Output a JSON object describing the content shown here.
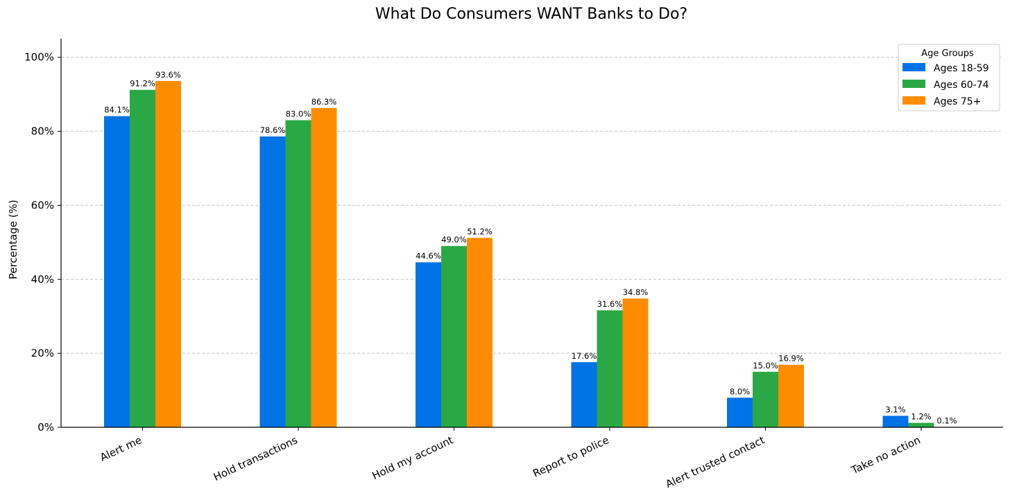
{
  "chart_data": {
    "type": "bar",
    "title": "What Do Consumers WANT Banks to Do?",
    "xlabel": "",
    "ylabel": "Percentage (%)",
    "ylim": [
      0,
      105
    ],
    "yticks": [
      0,
      20,
      40,
      60,
      80,
      100
    ],
    "ytick_labels": [
      "0%",
      "20%",
      "40%",
      "60%",
      "80%",
      "100%"
    ],
    "grid": "y-dashed",
    "categories": [
      "Alert me",
      "Hold transactions",
      "Hold my account",
      "Report to police",
      "Alert trusted contact",
      "Take no action"
    ],
    "series": [
      {
        "name": "Ages 18-59",
        "color": "#0073e6",
        "values": [
          84.1,
          78.6,
          44.6,
          17.6,
          8.0,
          3.1
        ],
        "labels": [
          "84.1%",
          "78.6%",
          "44.6%",
          "17.6%",
          "8.0%",
          "3.1%"
        ]
      },
      {
        "name": "Ages 60-74",
        "color": "#2aa845",
        "values": [
          91.2,
          83.0,
          49.0,
          31.6,
          15.0,
          1.2
        ],
        "labels": [
          "91.2%",
          "83.0%",
          "49.0%",
          "31.6%",
          "15.0%",
          "1.2%"
        ]
      },
      {
        "name": "Ages 75+",
        "color": "#ff8c00",
        "values": [
          93.6,
          86.3,
          51.2,
          34.8,
          16.9,
          0.1
        ],
        "labels": [
          "93.6%",
          "86.3%",
          "51.2%",
          "34.8%",
          "16.9%",
          "0.1%"
        ]
      }
    ],
    "legend": {
      "title": "Age Groups",
      "placement": "top-right"
    }
  },
  "colors": {
    "grid": "#c0c0c0",
    "axis": "#000000"
  }
}
